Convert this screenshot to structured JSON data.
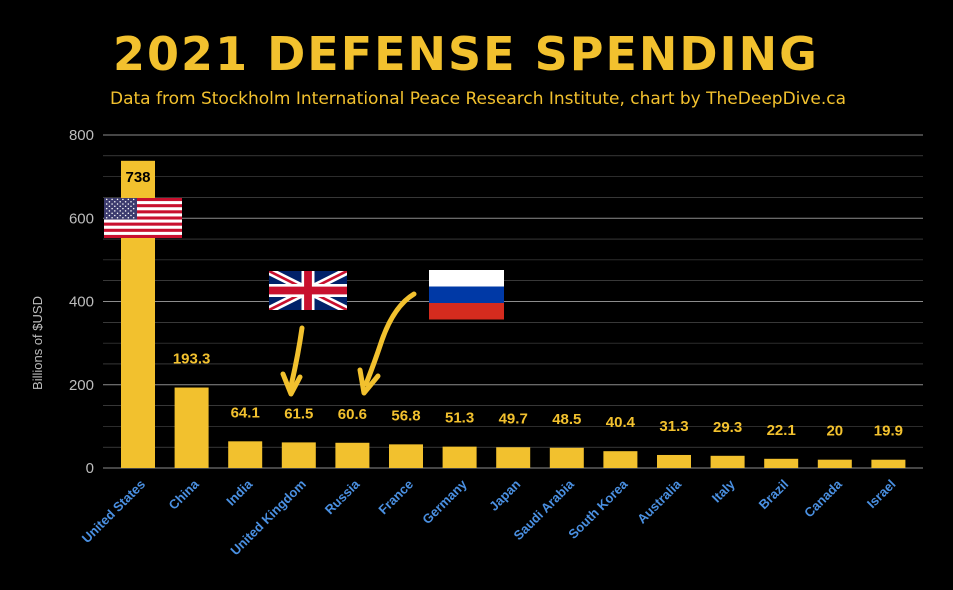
{
  "colors": {
    "background": "#000000",
    "bar": "#F2C12E",
    "title": "#F2C12E",
    "subtitle": "#F2C12E",
    "axis_text": "#BDBDBD",
    "category_text": "#4A90E2",
    "gridline": "#FFFFFF",
    "value_label_inside": "#000000"
  },
  "icons": [
    "us-flag-icon",
    "uk-flag-icon",
    "russia-flag-icon",
    "curved-arrow-icon"
  ],
  "chart_data": {
    "type": "bar",
    "title": "2021 DEFENSE SPENDING",
    "subtitle": "Data from Stockholm International Peace Research Institute, chart by TheDeepDive.ca",
    "xlabel": "",
    "ylabel": "Billions of $USD",
    "ylim": [
      0,
      800
    ],
    "yticks": [
      0,
      200,
      400,
      600,
      800
    ],
    "grid": true,
    "categories": [
      "United States",
      "China",
      "India",
      "United Kingdom",
      "Russia",
      "France",
      "Germany",
      "Japan",
      "Saudi Arabia",
      "South Korea",
      "Australia",
      "Italy",
      "Brazil",
      "Canada",
      "Israel"
    ],
    "values": [
      738,
      193.3,
      64.1,
      61.5,
      60.6,
      56.8,
      51.3,
      49.7,
      48.5,
      40.4,
      31.3,
      29.3,
      22.1,
      20,
      19.9
    ],
    "value_labels": [
      "738",
      "193.3",
      "64.1",
      "61.5",
      "60.6",
      "56.8",
      "51.3",
      "49.7",
      "48.5",
      "40.4",
      "31.3",
      "29.3",
      "22.1",
      "20",
      "19.9"
    ]
  }
}
